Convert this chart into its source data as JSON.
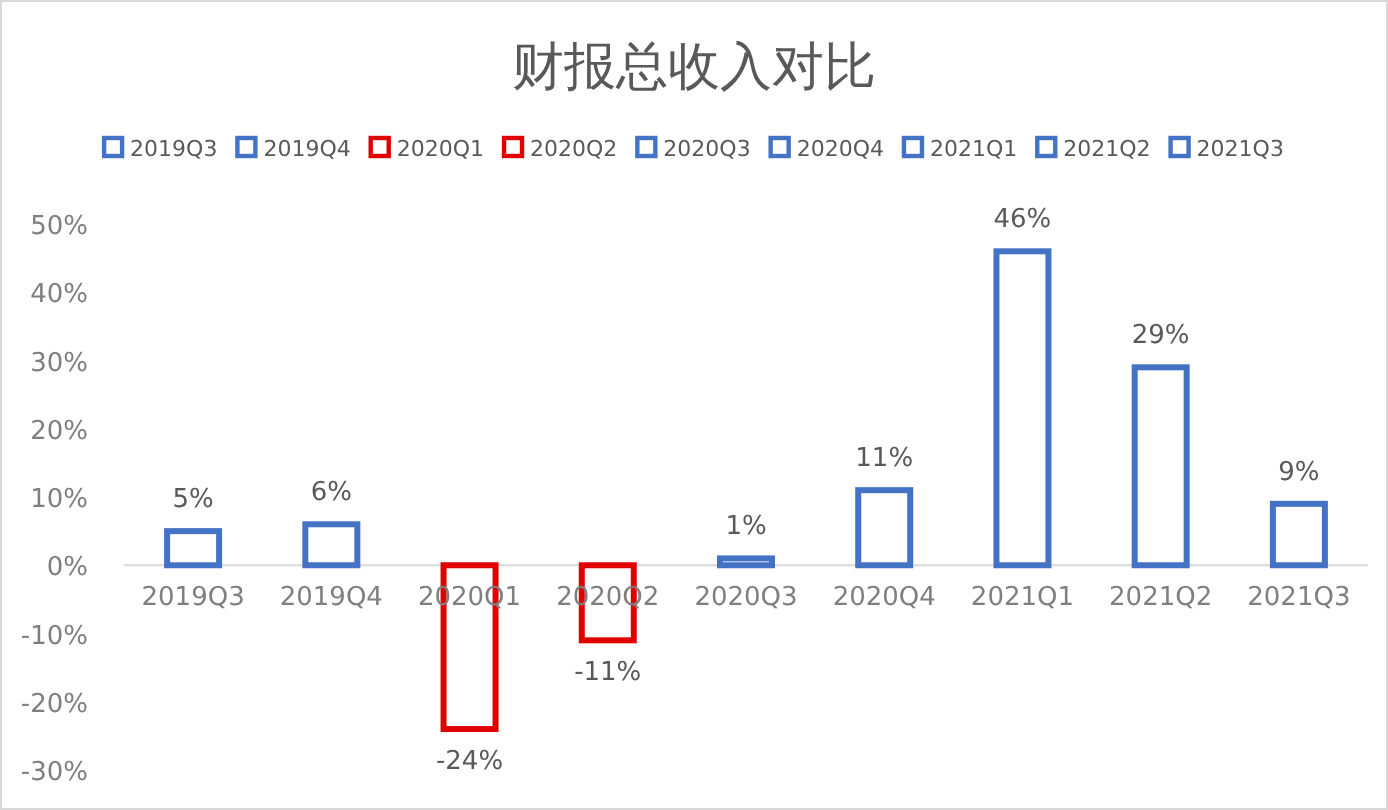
{
  "chart_data": {
    "type": "bar",
    "title": "财报总收入对比",
    "categories": [
      "2019Q3",
      "2019Q4",
      "2020Q1",
      "2020Q2",
      "2020Q3",
      "2020Q4",
      "2021Q1",
      "2021Q2",
      "2021Q3"
    ],
    "series": [
      {
        "name": "2019Q3",
        "color": "#4472c4",
        "values": [
          5,
          null,
          null,
          null,
          null,
          null,
          null,
          null,
          null
        ],
        "value_labels": [
          "5%",
          null,
          null,
          null,
          null,
          null,
          null,
          null,
          null
        ]
      },
      {
        "name": "2019Q4",
        "color": "#4472c4",
        "values": [
          null,
          6,
          null,
          null,
          null,
          null,
          null,
          null,
          null
        ],
        "value_labels": [
          null,
          "6%",
          null,
          null,
          null,
          null,
          null,
          null,
          null
        ]
      },
      {
        "name": "2020Q1",
        "color": "#e00000",
        "values": [
          null,
          null,
          -24,
          null,
          null,
          null,
          null,
          null,
          null
        ],
        "value_labels": [
          null,
          null,
          "-24%",
          null,
          null,
          null,
          null,
          null,
          null
        ]
      },
      {
        "name": "2020Q2",
        "color": "#e00000",
        "values": [
          null,
          null,
          null,
          -11,
          null,
          null,
          null,
          null,
          null
        ],
        "value_labels": [
          null,
          null,
          null,
          "-11%",
          null,
          null,
          null,
          null,
          null
        ]
      },
      {
        "name": "2020Q3",
        "color": "#4472c4",
        "values": [
          null,
          null,
          null,
          null,
          1,
          null,
          null,
          null,
          null
        ],
        "value_labels": [
          null,
          null,
          null,
          null,
          "1%",
          null,
          null,
          null,
          null
        ]
      },
      {
        "name": "2020Q4",
        "color": "#4472c4",
        "values": [
          null,
          null,
          null,
          null,
          null,
          11,
          null,
          null,
          null
        ],
        "value_labels": [
          null,
          null,
          null,
          null,
          null,
          "11%",
          null,
          null,
          null
        ]
      },
      {
        "name": "2021Q1",
        "color": "#4472c4",
        "values": [
          null,
          null,
          null,
          null,
          null,
          null,
          46,
          null,
          null
        ],
        "value_labels": [
          null,
          null,
          null,
          null,
          null,
          null,
          "46%",
          null,
          null
        ]
      },
      {
        "name": "2021Q2",
        "color": "#4472c4",
        "values": [
          null,
          null,
          null,
          null,
          null,
          null,
          null,
          29,
          null
        ],
        "value_labels": [
          null,
          null,
          null,
          null,
          null,
          null,
          null,
          "29%",
          null
        ]
      },
      {
        "name": "2021Q3",
        "color": "#4472c4",
        "values": [
          null,
          null,
          null,
          null,
          null,
          null,
          null,
          null,
          9
        ],
        "value_labels": [
          null,
          null,
          null,
          null,
          null,
          null,
          null,
          null,
          "9%"
        ]
      }
    ],
    "ylim": [
      -30,
      50
    ],
    "yticks": [
      {
        "value": -30,
        "label": "-30%"
      },
      {
        "value": -20,
        "label": "-20%"
      },
      {
        "value": -10,
        "label": "-10%"
      },
      {
        "value": 0,
        "label": "0%"
      },
      {
        "value": 10,
        "label": "10%"
      },
      {
        "value": 20,
        "label": "20%"
      },
      {
        "value": 30,
        "label": "30%"
      },
      {
        "value": 40,
        "label": "40%"
      },
      {
        "value": 50,
        "label": "50%"
      }
    ],
    "legend": "top",
    "grid": false
  }
}
